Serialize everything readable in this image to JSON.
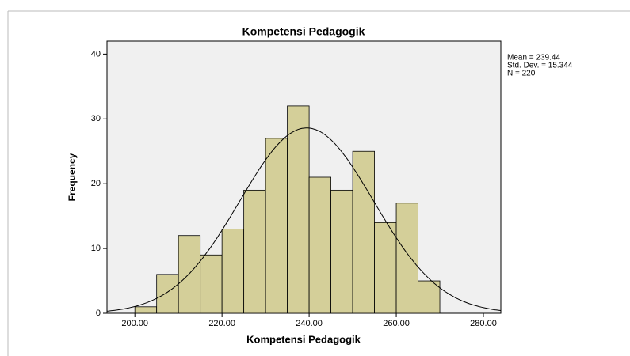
{
  "chart_data": {
    "type": "histogram",
    "title": "Kompetensi Pedagogik",
    "x_label": "Kompetensi Pedagogik",
    "y_label": "Frequency",
    "bins": [
      200,
      205,
      210,
      215,
      220,
      225,
      230,
      235,
      240,
      245,
      250,
      255,
      260,
      265,
      270
    ],
    "values": [
      1,
      6,
      12,
      9,
      13,
      19,
      27,
      32,
      21,
      19,
      25,
      14,
      17,
      5
    ],
    "color": "#d4cf99",
    "xlim": [
      193.6,
      284
    ],
    "ylim": [
      0,
      42
    ],
    "xticks": [
      {
        "value": 200,
        "label": "200.00"
      },
      {
        "value": 220,
        "label": "220.00"
      },
      {
        "value": 240,
        "label": "240.00"
      },
      {
        "value": 260,
        "label": "260.00"
      },
      {
        "value": 280,
        "label": "280.00"
      }
    ],
    "yticks": [
      0,
      10,
      20,
      30,
      40
    ],
    "stats": {
      "values": [
        239.44,
        15.344,
        220
      ],
      "value_labels": [
        "Mean = 239.44",
        "Std. Dev. = 15.344",
        "N = 220"
      ]
    }
  }
}
